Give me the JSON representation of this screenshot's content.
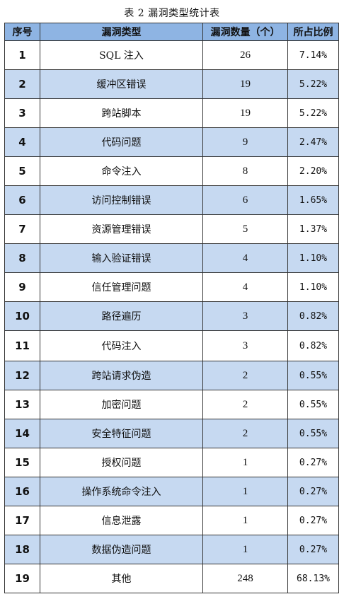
{
  "caption": "表 2 漏洞类型统计表",
  "headers": {
    "index": "序号",
    "type": "漏洞类型",
    "count": "漏洞数量（个）",
    "ratio": "所占比例"
  },
  "rows": [
    {
      "index": "1",
      "type": "SQL 注入",
      "count": "26",
      "ratio": "7.14%"
    },
    {
      "index": "2",
      "type": "缓冲区错误",
      "count": "19",
      "ratio": "5.22%"
    },
    {
      "index": "3",
      "type": "跨站脚本",
      "count": "19",
      "ratio": "5.22%"
    },
    {
      "index": "4",
      "type": "代码问题",
      "count": "9",
      "ratio": "2.47%"
    },
    {
      "index": "5",
      "type": "命令注入",
      "count": "8",
      "ratio": "2.20%"
    },
    {
      "index": "6",
      "type": "访问控制错误",
      "count": "6",
      "ratio": "1.65%"
    },
    {
      "index": "7",
      "type": "资源管理错误",
      "count": "5",
      "ratio": "1.37%"
    },
    {
      "index": "8",
      "type": "输入验证错误",
      "count": "4",
      "ratio": "1.10%"
    },
    {
      "index": "9",
      "type": "信任管理问题",
      "count": "4",
      "ratio": "1.10%"
    },
    {
      "index": "10",
      "type": "路径遍历",
      "count": "3",
      "ratio": "0.82%"
    },
    {
      "index": "11",
      "type": "代码注入",
      "count": "3",
      "ratio": "0.82%"
    },
    {
      "index": "12",
      "type": "跨站请求伪造",
      "count": "2",
      "ratio": "0.55%"
    },
    {
      "index": "13",
      "type": "加密问题",
      "count": "2",
      "ratio": "0.55%"
    },
    {
      "index": "14",
      "type": "安全特征问题",
      "count": "2",
      "ratio": "0.55%"
    },
    {
      "index": "15",
      "type": "授权问题",
      "count": "1",
      "ratio": "0.27%"
    },
    {
      "index": "16",
      "type": "操作系统命令注入",
      "count": "1",
      "ratio": "0.27%"
    },
    {
      "index": "17",
      "type": "信息泄露",
      "count": "1",
      "ratio": "0.27%"
    },
    {
      "index": "18",
      "type": "数据伪造问题",
      "count": "1",
      "ratio": "0.27%"
    },
    {
      "index": "19",
      "type": "其他",
      "count": "248",
      "ratio": "68.13%"
    }
  ],
  "colors": {
    "header_bg": "#8eb4e3",
    "shaded_row_bg": "#c6d9f1",
    "plain_row_bg": "#ffffff"
  }
}
